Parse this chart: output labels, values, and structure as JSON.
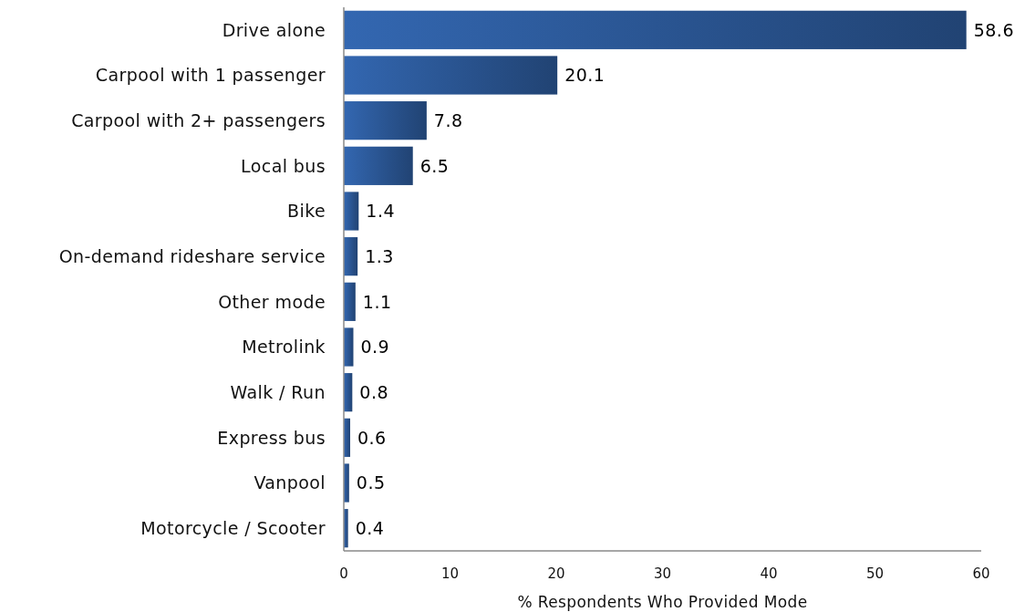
{
  "chart_data": {
    "type": "bar",
    "orientation": "horizontal",
    "xlabel": "% Respondents Who Provided Mode",
    "categories": [
      "Drive alone",
      "Carpool with 1 passenger",
      "Carpool with 2+ passengers",
      "Local bus",
      "Bike",
      "On-demand rideshare service",
      "Other mode",
      "Metrolink",
      "Walk / Run",
      "Express bus",
      "Vanpool",
      "Motorcycle / Scooter"
    ],
    "values": [
      58.6,
      20.1,
      7.8,
      6.5,
      1.4,
      1.3,
      1.1,
      0.9,
      0.8,
      0.6,
      0.5,
      0.4
    ],
    "color": "#29538f",
    "xlim": [
      0,
      60
    ],
    "xticks": [
      0,
      10,
      20,
      30,
      40,
      50,
      60
    ],
    "data_labels": true
  }
}
